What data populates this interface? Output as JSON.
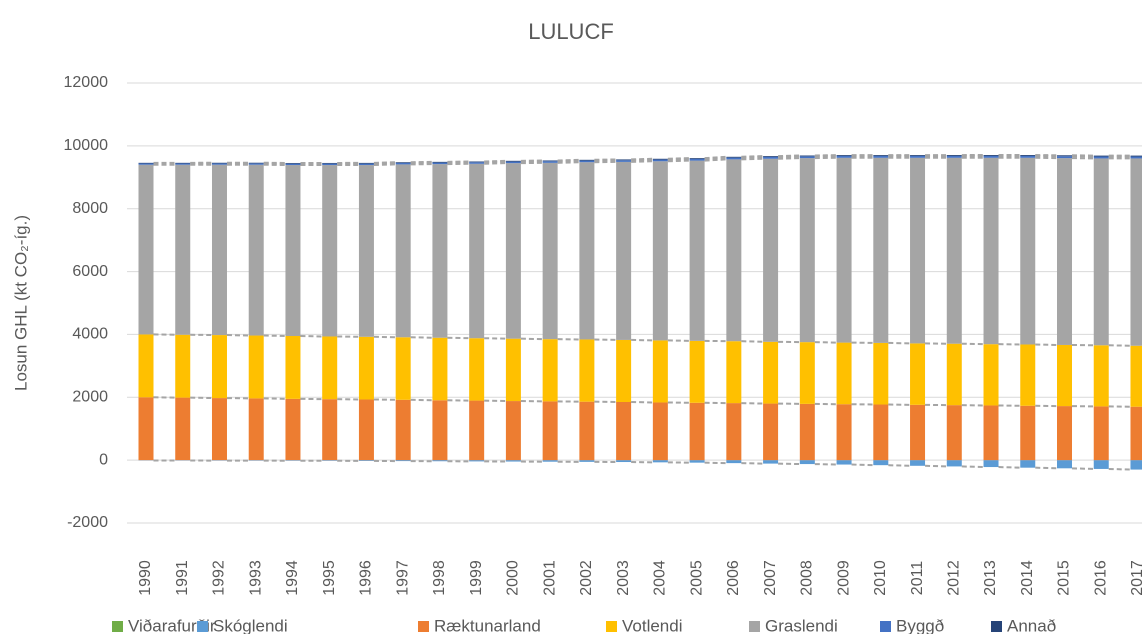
{
  "chart_data": {
    "type": "bar",
    "stacked": true,
    "title": "LULUCF",
    "y_label": "Losun GHL (kt CO₂-íg.)",
    "categories": [
      "1990",
      "1991",
      "1992",
      "1993",
      "1994",
      "1995",
      "1996",
      "1997",
      "1998",
      "1999",
      "2000",
      "2001",
      "2002",
      "2003",
      "2004",
      "2005",
      "2006",
      "2007",
      "2008",
      "2009",
      "2010",
      "2011",
      "2012",
      "2013",
      "2014",
      "2015",
      "2016",
      "2017"
    ],
    "series": [
      {
        "name": "Viðarafurðir",
        "color": "#70ad47",
        "values": [
          0,
          0,
          0,
          0,
          0,
          0,
          0,
          0,
          0,
          0,
          0,
          0,
          0,
          0,
          0,
          0,
          0,
          0,
          0,
          0,
          0,
          0,
          0,
          0,
          0,
          0,
          0,
          0
        ]
      },
      {
        "name": "Skóglendi",
        "color": "#5b9bd5",
        "values": [
          -10,
          -12,
          -14,
          -16,
          -18,
          -20,
          -25,
          -30,
          -35,
          -40,
          -45,
          -50,
          -55,
          -60,
          -70,
          -80,
          -95,
          -110,
          -125,
          -140,
          -160,
          -180,
          -200,
          -220,
          -240,
          -260,
          -280,
          -300
        ]
      },
      {
        "name": "Ræktunarland",
        "color": "#ed7d31",
        "values": [
          2000,
          1990,
          1975,
          1965,
          1950,
          1940,
          1930,
          1920,
          1905,
          1895,
          1880,
          1870,
          1860,
          1850,
          1835,
          1825,
          1815,
          1800,
          1790,
          1780,
          1770,
          1760,
          1750,
          1740,
          1730,
          1720,
          1710,
          1700
        ]
      },
      {
        "name": "Votlendi",
        "color": "#ffc000",
        "values": [
          2000,
          2000,
          2005,
          2000,
          2000,
          1995,
          1995,
          1990,
          1990,
          1985,
          1985,
          1980,
          1980,
          1975,
          1975,
          1970,
          1970,
          1965,
          1965,
          1960,
          1960,
          1955,
          1955,
          1950,
          1950,
          1945,
          1945,
          1940
        ]
      },
      {
        "name": "Graslendi",
        "color": "#a5a5a5",
        "values": [
          5400,
          5410,
          5420,
          5435,
          5440,
          5455,
          5465,
          5500,
          5525,
          5550,
          5585,
          5610,
          5640,
          5665,
          5700,
          5735,
          5785,
          5825,
          5855,
          5880,
          5890,
          5905,
          5915,
          5930,
          5940,
          5945,
          5945,
          5960
        ]
      },
      {
        "name": "Byggð",
        "color": "#4472c4",
        "values": [
          40,
          40,
          41,
          42,
          43,
          44,
          45,
          46,
          47,
          48,
          49,
          50,
          51,
          52,
          53,
          54,
          55,
          56,
          56,
          57,
          57,
          58,
          58,
          59,
          59,
          60,
          60,
          60
        ]
      },
      {
        "name": "Annað",
        "color": "#264478",
        "values": [
          20,
          20,
          21,
          21,
          22,
          22,
          23,
          23,
          24,
          24,
          25,
          25,
          25,
          26,
          26,
          26,
          27,
          27,
          27,
          28,
          28,
          28,
          29,
          29,
          29,
          30,
          30,
          30
        ]
      }
    ],
    "ylim": [
      -2000,
      12000
    ],
    "yticks": [
      -2000,
      0,
      2000,
      4000,
      6000,
      8000,
      10000,
      12000
    ],
    "grid": true,
    "legend": "bottom"
  }
}
